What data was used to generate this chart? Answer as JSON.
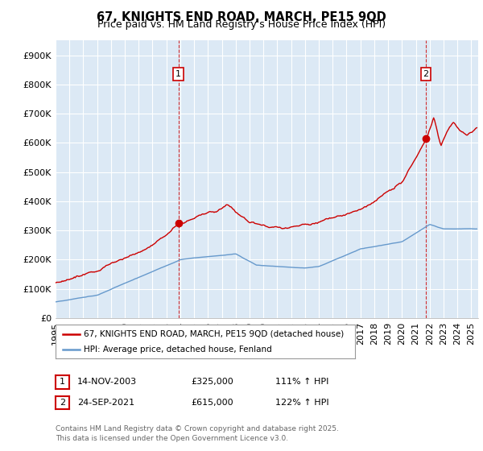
{
  "title": "67, KNIGHTS END ROAD, MARCH, PE15 9QD",
  "subtitle": "Price paid vs. HM Land Registry's House Price Index (HPI)",
  "ylabel_ticks": [
    "£0",
    "£100K",
    "£200K",
    "£300K",
    "£400K",
    "£500K",
    "£600K",
    "£700K",
    "£800K",
    "£900K"
  ],
  "ytick_values": [
    0,
    100000,
    200000,
    300000,
    400000,
    500000,
    600000,
    700000,
    800000,
    900000
  ],
  "ylim": [
    0,
    950000
  ],
  "xlim_start": 1995.0,
  "xlim_end": 2025.5,
  "legend_label_red": "67, KNIGHTS END ROAD, MARCH, PE15 9QD (detached house)",
  "legend_label_blue": "HPI: Average price, detached house, Fenland",
  "point1_label": "1",
  "point1_date": "14-NOV-2003",
  "point1_value": "£325,000",
  "point1_pct": "111% ↑ HPI",
  "point1_x": 2003.87,
  "point1_y": 325000,
  "point2_label": "2",
  "point2_date": "24-SEP-2021",
  "point2_value": "£615,000",
  "point2_pct": "122% ↑ HPI",
  "point2_x": 2021.73,
  "point2_y": 615000,
  "red_color": "#cc0000",
  "blue_color": "#6699cc",
  "background_color": "#dce9f5",
  "grid_color": "#ffffff",
  "footer_text": "Contains HM Land Registry data © Crown copyright and database right 2025.\nThis data is licensed under the Open Government Licence v3.0.",
  "title_fontsize": 10.5,
  "subtitle_fontsize": 9,
  "tick_fontsize": 8
}
